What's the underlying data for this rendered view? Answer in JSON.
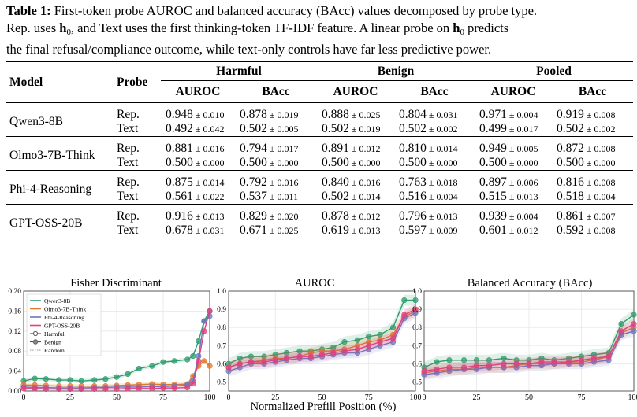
{
  "caption": {
    "lead": "Table 1:",
    "line1_rest": " First-token probe AUROC and balanced accuracy (BAcc) values decomposed by probe type.",
    "line2_a": "Rep. uses ",
    "h": "h",
    "sub0": "0",
    "line2_b": ", and Text uses the first thinking-token TF-IDF feature. A linear probe on ",
    "line2_c": " predicts",
    "line3": "the final refusal/compliance outcome, while text-only controls have far less predictive power."
  },
  "table": {
    "col_model": "Model",
    "col_probe": "Probe",
    "groups": [
      "Harmful",
      "Benign",
      "Pooled"
    ],
    "metrics": [
      "AUROC",
      "BAcc"
    ],
    "pm": "±",
    "rows": [
      {
        "model": "Qwen3-8B",
        "probes": [
          {
            "probe": "Rep.",
            "vals": [
              [
                "0.948",
                "0.010"
              ],
              [
                "0.878",
                "0.019"
              ],
              [
                "0.888",
                "0.025"
              ],
              [
                "0.804",
                "0.031"
              ],
              [
                "0.971",
                "0.004"
              ],
              [
                "0.919",
                "0.008"
              ]
            ]
          },
          {
            "probe": "Text",
            "vals": [
              [
                "0.492",
                "0.042"
              ],
              [
                "0.502",
                "0.005"
              ],
              [
                "0.502",
                "0.019"
              ],
              [
                "0.502",
                "0.002"
              ],
              [
                "0.499",
                "0.017"
              ],
              [
                "0.502",
                "0.002"
              ]
            ]
          }
        ]
      },
      {
        "model": "Olmo3-7B-Think",
        "probes": [
          {
            "probe": "Rep.",
            "vals": [
              [
                "0.881",
                "0.016"
              ],
              [
                "0.794",
                "0.017"
              ],
              [
                "0.891",
                "0.012"
              ],
              [
                "0.810",
                "0.014"
              ],
              [
                "0.949",
                "0.005"
              ],
              [
                "0.872",
                "0.008"
              ]
            ]
          },
          {
            "probe": "Text",
            "vals": [
              [
                "0.500",
                "0.000"
              ],
              [
                "0.500",
                "0.000"
              ],
              [
                "0.500",
                "0.000"
              ],
              [
                "0.500",
                "0.000"
              ],
              [
                "0.500",
                "0.000"
              ],
              [
                "0.500",
                "0.000"
              ]
            ]
          }
        ]
      },
      {
        "model": "Phi-4-Reasoning",
        "probes": [
          {
            "probe": "Rep.",
            "vals": [
              [
                "0.875",
                "0.014"
              ],
              [
                "0.792",
                "0.016"
              ],
              [
                "0.840",
                "0.016"
              ],
              [
                "0.763",
                "0.018"
              ],
              [
                "0.897",
                "0.006"
              ],
              [
                "0.816",
                "0.008"
              ]
            ]
          },
          {
            "probe": "Text",
            "vals": [
              [
                "0.561",
                "0.022"
              ],
              [
                "0.537",
                "0.011"
              ],
              [
                "0.502",
                "0.014"
              ],
              [
                "0.516",
                "0.004"
              ],
              [
                "0.515",
                "0.013"
              ],
              [
                "0.518",
                "0.004"
              ]
            ]
          }
        ]
      },
      {
        "model": "GPT-OSS-20B",
        "probes": [
          {
            "probe": "Rep.",
            "vals": [
              [
                "0.916",
                "0.013"
              ],
              [
                "0.829",
                "0.020"
              ],
              [
                "0.878",
                "0.012"
              ],
              [
                "0.796",
                "0.013"
              ],
              [
                "0.939",
                "0.004"
              ],
              [
                "0.861",
                "0.007"
              ]
            ]
          },
          {
            "probe": "Text",
            "vals": [
              [
                "0.678",
                "0.031"
              ],
              [
                "0.671",
                "0.025"
              ],
              [
                "0.619",
                "0.013"
              ],
              [
                "0.597",
                "0.009"
              ],
              [
                "0.601",
                "0.012"
              ],
              [
                "0.592",
                "0.008"
              ]
            ]
          }
        ]
      }
    ]
  },
  "figure": {
    "xlabel": "Normalized Prefill Position (%)",
    "colors": {
      "Qwen3-8B": "#2e9d6e",
      "Olmo3-7B-Think": "#e0782a",
      "Phi-4-Reasoning": "#6b78c0",
      "GPT-OSS-20B": "#e0407e"
    },
    "legend": [
      "Qwen3-8B",
      "Olmo3-7B-Think",
      "Phi-4-Reasoning",
      "GPT-OSS-20B",
      "Harmful",
      "Benign",
      "Random"
    ]
  },
  "chart_data": [
    {
      "type": "line",
      "title": "Fisher Discriminant",
      "xlabel": "",
      "ylabel": "",
      "xlim": [
        0,
        100
      ],
      "ylim": [
        0,
        0.2
      ],
      "xticks": [
        "0",
        "25",
        "50",
        "75",
        "100"
      ],
      "yticks": [
        "0.00",
        "0.04",
        "0.08",
        "0.12",
        "0.16",
        "0.20"
      ],
      "x": [
        0,
        6,
        12,
        19,
        25,
        31,
        38,
        44,
        50,
        56,
        62,
        69,
        75,
        81,
        88,
        91,
        94,
        97,
        100
      ],
      "series": [
        {
          "name": "Qwen3-8B",
          "values": [
            0.02,
            0.025,
            0.024,
            0.022,
            0.022,
            0.02,
            0.022,
            0.024,
            0.028,
            0.034,
            0.045,
            0.05,
            0.058,
            0.06,
            0.063,
            0.07,
            0.1,
            0.14,
            0.16
          ]
        },
        {
          "name": "Olmo3-7B-Think",
          "values": [
            0.012,
            0.012,
            0.011,
            0.01,
            0.01,
            0.01,
            0.01,
            0.01,
            0.011,
            0.012,
            0.013,
            0.014,
            0.013,
            0.013,
            0.014,
            0.03,
            0.05,
            0.06,
            0.05
          ]
        },
        {
          "name": "Phi-4-Reasoning",
          "values": [
            0.008,
            0.007,
            0.007,
            0.006,
            0.006,
            0.006,
            0.007,
            0.007,
            0.008,
            0.008,
            0.008,
            0.009,
            0.009,
            0.01,
            0.012,
            0.02,
            0.07,
            0.14,
            0.15
          ]
        },
        {
          "name": "GPT-OSS-20B",
          "values": [
            0.005,
            0.005,
            0.004,
            0.004,
            0.004,
            0.004,
            0.004,
            0.004,
            0.004,
            0.005,
            0.005,
            0.005,
            0.006,
            0.006,
            0.007,
            0.015,
            0.06,
            0.12,
            0.16
          ]
        }
      ],
      "reference": {
        "name": "Random",
        "value": null
      },
      "grid": true,
      "legend_position": "top-left"
    },
    {
      "type": "line",
      "title": "AUROC",
      "xlabel": "",
      "ylabel": "",
      "xlim": [
        0,
        100
      ],
      "ylim": [
        0.45,
        1.0
      ],
      "xticks": [
        "0",
        "25",
        "50",
        "75",
        "100"
      ],
      "yticks": [
        "0.5",
        "0.6",
        "0.7",
        "0.8",
        "0.9",
        "1.0"
      ],
      "x": [
        0,
        6,
        12,
        19,
        25,
        31,
        38,
        44,
        50,
        56,
        62,
        69,
        75,
        81,
        88,
        94,
        100
      ],
      "series": [
        {
          "name": "Qwen3-8B",
          "values": [
            0.6,
            0.63,
            0.64,
            0.64,
            0.65,
            0.66,
            0.67,
            0.67,
            0.68,
            0.69,
            0.72,
            0.73,
            0.75,
            0.76,
            0.8,
            0.95,
            0.95
          ]
        },
        {
          "name": "Olmo3-7B-Think",
          "values": [
            0.58,
            0.6,
            0.61,
            0.62,
            0.63,
            0.63,
            0.64,
            0.66,
            0.67,
            0.67,
            0.68,
            0.7,
            0.72,
            0.73,
            0.76,
            0.86,
            0.89
          ]
        },
        {
          "name": "Phi-4-Reasoning",
          "values": [
            0.56,
            0.58,
            0.6,
            0.6,
            0.61,
            0.62,
            0.63,
            0.63,
            0.64,
            0.65,
            0.66,
            0.66,
            0.68,
            0.7,
            0.72,
            0.85,
            0.88
          ]
        },
        {
          "name": "GPT-OSS-20B",
          "values": [
            0.58,
            0.6,
            0.61,
            0.61,
            0.62,
            0.63,
            0.64,
            0.64,
            0.65,
            0.66,
            0.67,
            0.68,
            0.7,
            0.72,
            0.74,
            0.87,
            0.9
          ]
        }
      ],
      "reference": {
        "name": "Random",
        "value": 0.5
      },
      "grid": true
    },
    {
      "type": "line",
      "title": "Balanced Accuracy (BAcc)",
      "xlabel": "",
      "ylabel": "",
      "xlim": [
        0,
        100
      ],
      "ylim": [
        0.45,
        1.0
      ],
      "xticks": [
        "0",
        "25",
        "50",
        "75",
        "100"
      ],
      "yticks": [
        "0.5",
        "0.6",
        "0.7",
        "0.8",
        "0.9",
        "1.0"
      ],
      "x": [
        0,
        6,
        12,
        19,
        25,
        31,
        38,
        44,
        50,
        56,
        62,
        69,
        75,
        81,
        88,
        94,
        100
      ],
      "series": [
        {
          "name": "Qwen3-8B",
          "values": [
            0.58,
            0.61,
            0.62,
            0.62,
            0.62,
            0.62,
            0.63,
            0.62,
            0.62,
            0.63,
            0.62,
            0.63,
            0.64,
            0.65,
            0.66,
            0.82,
            0.87
          ]
        },
        {
          "name": "Olmo3-7B-Think",
          "values": [
            0.55,
            0.56,
            0.57,
            0.57,
            0.58,
            0.58,
            0.58,
            0.59,
            0.6,
            0.6,
            0.6,
            0.61,
            0.61,
            0.62,
            0.64,
            0.77,
            0.8
          ]
        },
        {
          "name": "Phi-4-Reasoning",
          "values": [
            0.54,
            0.55,
            0.56,
            0.57,
            0.57,
            0.58,
            0.58,
            0.58,
            0.59,
            0.59,
            0.6,
            0.6,
            0.6,
            0.61,
            0.62,
            0.76,
            0.78
          ]
        },
        {
          "name": "GPT-OSS-20B",
          "values": [
            0.56,
            0.57,
            0.58,
            0.58,
            0.59,
            0.59,
            0.6,
            0.6,
            0.6,
            0.61,
            0.61,
            0.61,
            0.62,
            0.63,
            0.64,
            0.78,
            0.82
          ]
        }
      ],
      "reference": {
        "name": "Random",
        "value": 0.5
      },
      "grid": true
    }
  ]
}
